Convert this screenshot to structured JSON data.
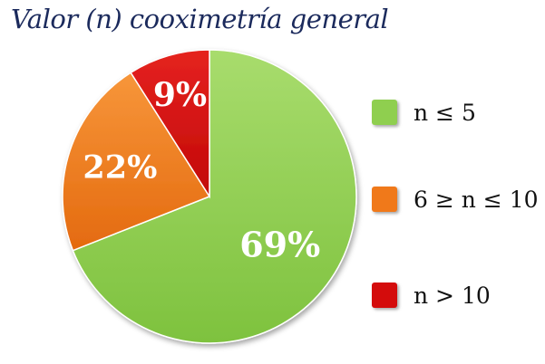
{
  "chart_data": {
    "type": "pie",
    "title": "Valor  (n) cooximetría general",
    "categories": [
      "n ≤ 5",
      "6 ≥ n ≤ 10",
      "n > 10"
    ],
    "values": [
      69,
      22,
      9
    ],
    "value_labels": [
      "69%",
      "22%",
      "9%"
    ],
    "colors": [
      "#8fcf4f",
      "#f0791a",
      "#d40c0c"
    ],
    "legend_position": "right"
  }
}
